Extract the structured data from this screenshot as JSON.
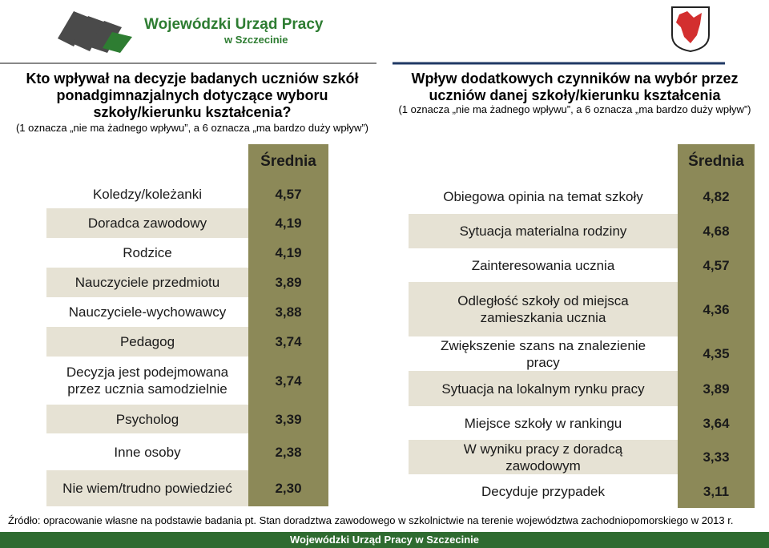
{
  "header": {
    "logo_line1": "Wojewódzki Urząd Pracy",
    "logo_line2": "w Szczecinie"
  },
  "left": {
    "title": "Kto wpływał na decyzje badanych uczniów szkół ponadgimnazjalnych dotyczące wyboru szkoły/kierunku kształcenia?",
    "subtitle": "(1 oznacza „nie ma żadnego wpływu”, a 6 oznacza „ma bardzo duży wpływ”)",
    "table": {
      "header": "Średnia",
      "rows": [
        [
          "Koledzy/koleżanki",
          "4,57"
        ],
        [
          "Doradca zawodowy",
          "4,19"
        ],
        [
          "Rodzice",
          "4,19"
        ],
        [
          "Nauczyciele przedmiotu",
          "3,89"
        ],
        [
          "Nauczyciele-wychowawcy",
          "3,88"
        ],
        [
          "Pedagog",
          "3,74"
        ],
        [
          "Decyzja jest podejmowana przez ucznia samodzielnie",
          "3,74"
        ],
        [
          "Psycholog",
          "3,39"
        ],
        [
          "Inne osoby",
          "2,38"
        ],
        [
          "Nie wiem/trudno powiedzieć",
          "2,30"
        ]
      ]
    }
  },
  "right": {
    "title": "Wpływ dodatkowych czynników na wybór przez uczniów danej szkoły/kierunku kształcenia",
    "subtitle": "(1 oznacza „nie ma żadnego wpływu”, a 6 oznacza „ma bardzo duży wpływ”)",
    "table": {
      "header": "Średnia",
      "rows": [
        [
          "Obiegowa opinia na temat szkoły",
          "4,82"
        ],
        [
          "Sytuacja materialna rodziny",
          "4,68"
        ],
        [
          "Zainteresowania ucznia",
          "4,57"
        ],
        [
          "Odległość szkoły od miejsca zamieszkania ucznia",
          "4,36"
        ],
        [
          "Zwiększenie szans na znalezienie pracy",
          "4,35"
        ],
        [
          "Sytuacja na lokalnym rynku pracy",
          "3,89"
        ],
        [
          "Miejsce szkoły w rankingu",
          "3,64"
        ],
        [
          "W wyniku pracy z doradcą zawodowym",
          "3,33"
        ],
        [
          "Decyduje przypadek",
          "3,11"
        ]
      ]
    }
  },
  "footer": {
    "source": "Źródło: opracowanie własne na podstawie badania pt. Stan doradztwa zawodowego w szkolnictwie na terenie województwa zachodniopomorskiego w 2013 r.",
    "bar": "Wojewódzki Urząd Pracy w Szczecinie"
  }
}
